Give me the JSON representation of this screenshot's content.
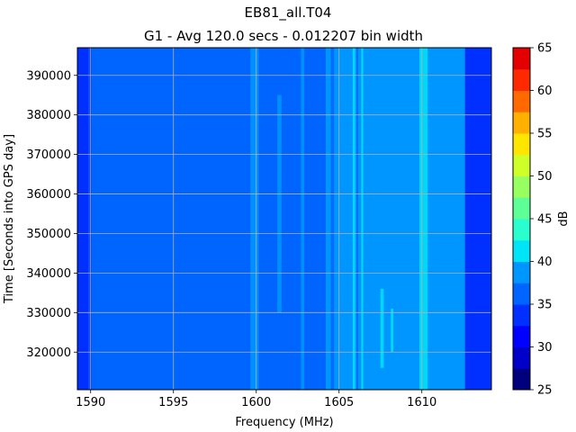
{
  "chart_data": {
    "type": "heatmap",
    "title": "EB81_all.T04",
    "subtitle": "G1 - Avg 120.0 secs - 0.012207 bin width",
    "xlabel": "Frequency (MHz)",
    "ylabel": "Time [Seconds into GPS day]",
    "colorbar_label": "dB",
    "xlim": [
      1589.2,
      1614.2
    ],
    "ylim": [
      310500,
      397000
    ],
    "xticks": [
      1590,
      1595,
      1600,
      1605,
      1610
    ],
    "yticks": [
      320000,
      330000,
      340000,
      350000,
      360000,
      370000,
      380000,
      390000
    ],
    "grid": true,
    "colorscale": {
      "levels": [
        25,
        27.5,
        30,
        32.5,
        35,
        37.5,
        40,
        42.5,
        45,
        47.5,
        50,
        52.5,
        55,
        57.5,
        60,
        62.5,
        65
      ],
      "colors": [
        "#00007f",
        "#0000c8",
        "#0000ff",
        "#0030ff",
        "#0064ff",
        "#0096ff",
        "#00e4f8",
        "#29ffce",
        "#5fff97",
        "#97ff5f",
        "#ceff29",
        "#ffe600",
        "#ffb000",
        "#ff6a00",
        "#ff2900",
        "#e40000",
        "#a00000"
      ],
      "tick_labels": [
        25,
        30,
        35,
        40,
        45,
        50,
        55,
        60,
        65
      ]
    },
    "bands": [
      {
        "x0": 1589.2,
        "x1": 1589.9,
        "level": 32.5
      },
      {
        "x0": 1589.9,
        "x1": 1604.2,
        "level": 35
      },
      {
        "x0": 1604.2,
        "x1": 1612.6,
        "level": 37.5
      },
      {
        "x0": 1612.6,
        "x1": 1614.2,
        "level": 32.5
      }
    ],
    "features": [
      {
        "x": 1590.0,
        "y0": 310500,
        "y1": 397000,
        "width": 0.12,
        "level": 32.5
      },
      {
        "x": 1599.9,
        "y0": 310500,
        "y1": 397000,
        "width": 0.5,
        "level": 37.5
      },
      {
        "x": 1601.4,
        "y0": 330000,
        "y1": 385000,
        "width": 0.25,
        "level": 37.5
      },
      {
        "x": 1602.8,
        "y0": 310500,
        "y1": 397000,
        "width": 0.2,
        "level": 37.5
      },
      {
        "x": 1604.6,
        "y0": 310500,
        "y1": 397000,
        "width": 0.2,
        "level": 35
      },
      {
        "x": 1605.9,
        "y0": 310500,
        "y1": 397000,
        "width": 0.15,
        "level": 40
      },
      {
        "x": 1606.1,
        "y0": 310500,
        "y1": 397000,
        "width": 0.1,
        "level": 35
      },
      {
        "x": 1606.4,
        "y0": 310500,
        "y1": 397000,
        "width": 0.12,
        "level": 40
      },
      {
        "x": 1607.6,
        "y0": 316000,
        "y1": 336000,
        "width": 0.2,
        "level": 40
      },
      {
        "x": 1608.2,
        "y0": 320000,
        "y1": 331000,
        "width": 0.15,
        "level": 40
      },
      {
        "x": 1610.1,
        "y0": 310500,
        "y1": 397000,
        "width": 0.5,
        "level": 40
      },
      {
        "x": 1611.0,
        "y0": 310500,
        "y1": 397000,
        "width": 0.25,
        "level": 37.5
      }
    ]
  }
}
